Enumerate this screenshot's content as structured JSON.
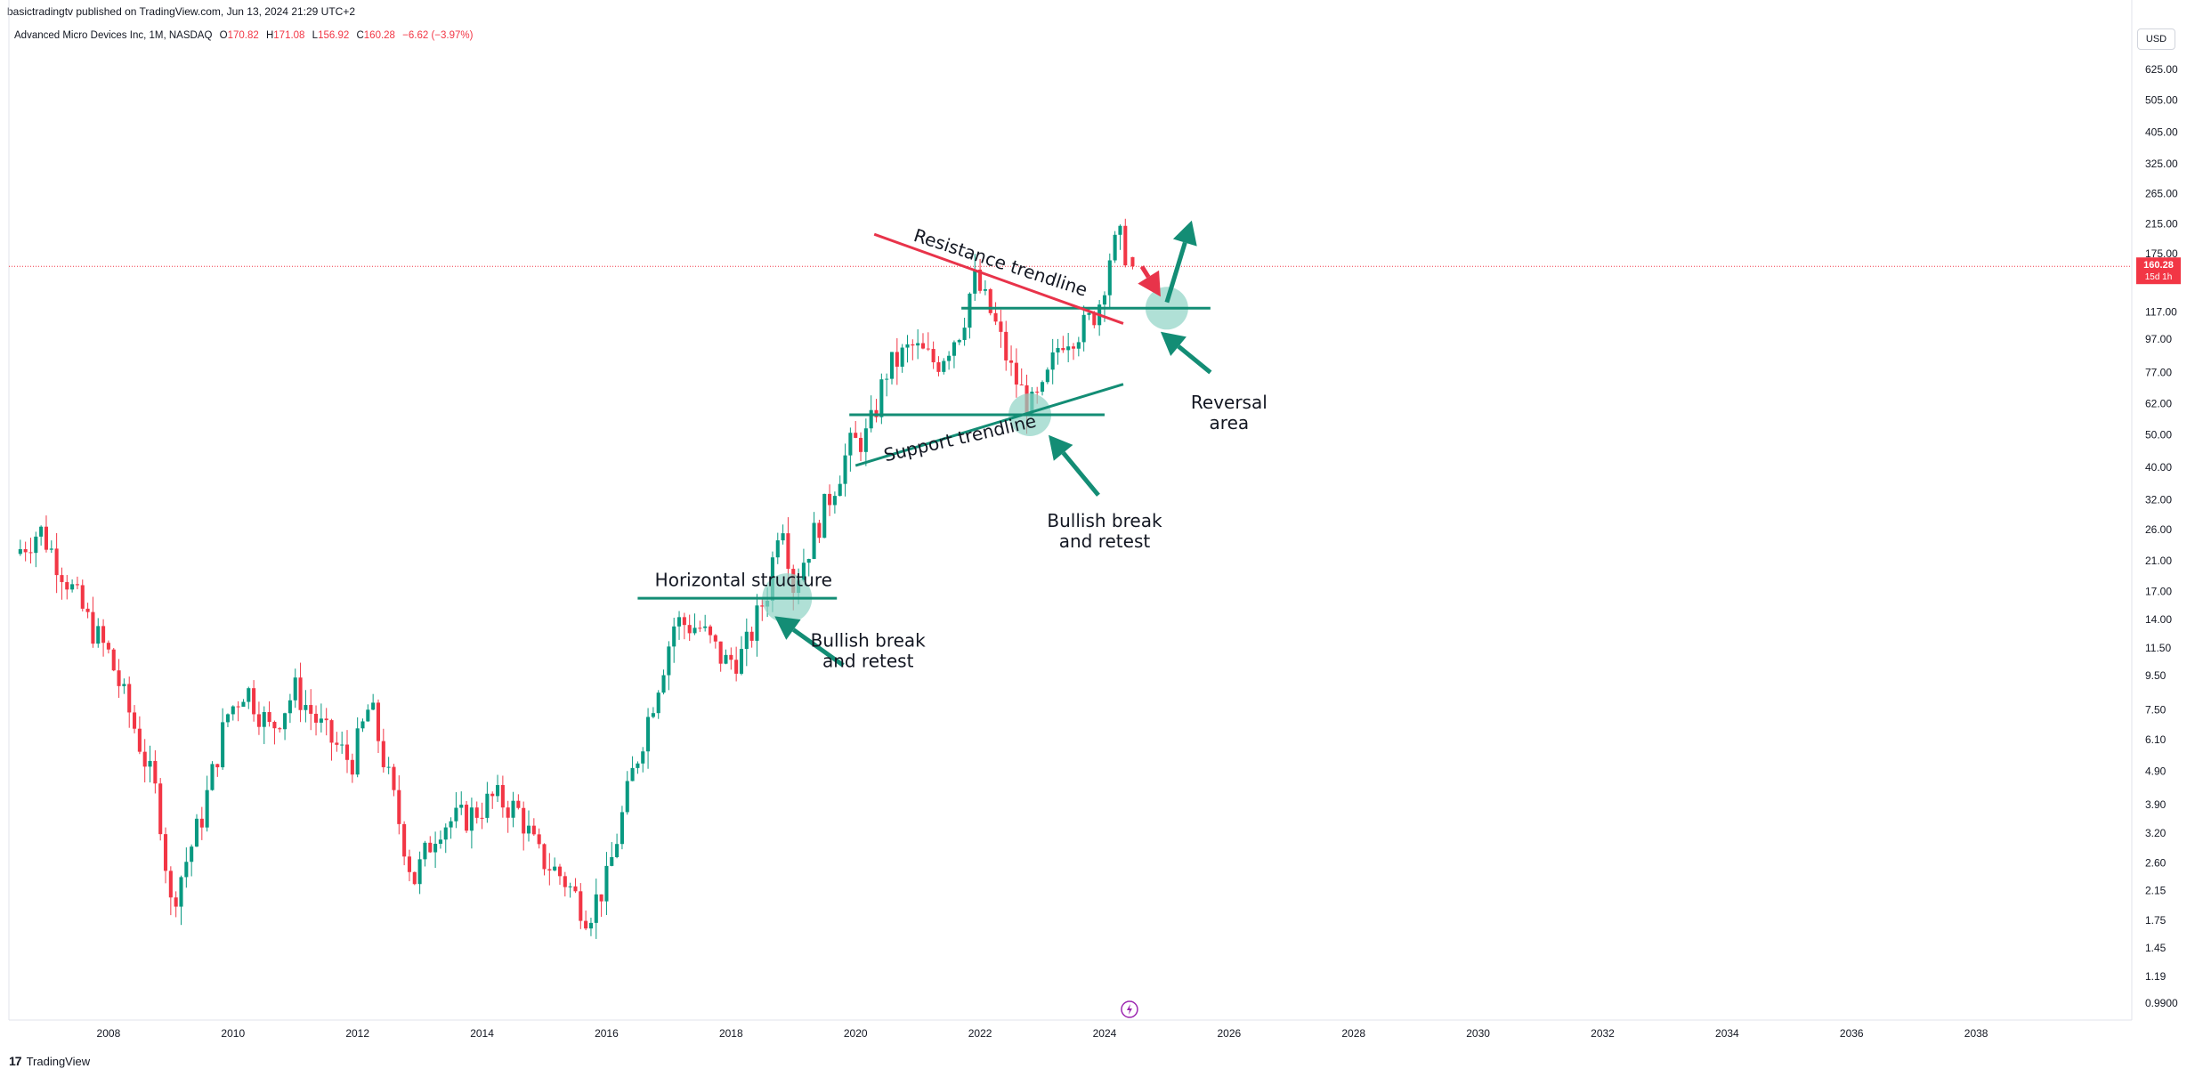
{
  "header": {
    "published_line": "basictradingtv published on TradingView.com, Jun 13, 2024 21:29 UTC+2"
  },
  "legend": {
    "symbol": "Advanced Micro Devices Inc, 1M, NASDAQ",
    "open_key": "O",
    "open": "170.82",
    "high_key": "H",
    "high": "171.08",
    "low_key": "L",
    "low": "156.92",
    "close_key": "C",
    "close": "160.28",
    "change": "−6.62 (−3.97%)"
  },
  "currency_button": "USD",
  "price_tag": {
    "price": "160.28",
    "countdown": "15d 1h"
  },
  "footer": {
    "logo": "17",
    "brand": "TradingView"
  },
  "colors": {
    "up": "#089981",
    "down": "#f23645",
    "drawing_green": "#138d75",
    "drawing_red": "#e8334a",
    "zone": "#8fd3c5"
  },
  "chart_data": {
    "type": "candlestick",
    "instrument": "Advanced Micro Devices Inc",
    "interval": "1M",
    "exchange": "NASDAQ",
    "scale": "log",
    "xlim": [
      2006.4,
      2040.5
    ],
    "ylim": [
      0.88,
      760
    ],
    "x_ticks": [
      "2008",
      "2010",
      "2012",
      "2014",
      "2016",
      "2018",
      "2020",
      "2022",
      "2024",
      "2026",
      "2028",
      "2030",
      "2032",
      "2034",
      "2036",
      "2038"
    ],
    "y_ticks": [
      "625.00",
      "505.00",
      "405.00",
      "325.00",
      "265.00",
      "215.00",
      "175.00",
      "117.00",
      "97.00",
      "77.00",
      "62.00",
      "50.00",
      "40.00",
      "32.00",
      "26.00",
      "21.00",
      "17.00",
      "14.00",
      "11.50",
      "9.50",
      "7.50",
      "6.10",
      "4.90",
      "3.90",
      "3.20",
      "2.60",
      "2.15",
      "1.75",
      "1.45",
      "1.19",
      "0.9900"
    ],
    "ohlc_anchors": [
      [
        2006.5,
        22
      ],
      [
        2006.9,
        26
      ],
      [
        2007.3,
        19
      ],
      [
        2007.7,
        13.5
      ],
      [
        2008.0,
        11
      ],
      [
        2008.4,
        6.8
      ],
      [
        2008.8,
        4.0
      ],
      [
        2009.0,
        1.95
      ],
      [
        2009.5,
        3.6
      ],
      [
        2009.9,
        7.2
      ],
      [
        2010.2,
        8.8
      ],
      [
        2010.6,
        6.5
      ],
      [
        2011.0,
        8.6
      ],
      [
        2011.5,
        6.3
      ],
      [
        2011.9,
        5.2
      ],
      [
        2012.2,
        7.8
      ],
      [
        2012.6,
        3.9
      ],
      [
        2012.9,
        2.3
      ],
      [
        2013.3,
        3.4
      ],
      [
        2013.8,
        3.6
      ],
      [
        2014.2,
        4.1
      ],
      [
        2014.6,
        3.7
      ],
      [
        2014.9,
        2.75
      ],
      [
        2015.3,
        2.35
      ],
      [
        2015.7,
        1.82
      ],
      [
        2016.0,
        2.3
      ],
      [
        2016.4,
        4.7
      ],
      [
        2016.8,
        8.7
      ],
      [
        2017.1,
        13.8
      ],
      [
        2017.5,
        13.2
      ],
      [
        2017.9,
        10.4
      ],
      [
        2018.2,
        11.0
      ],
      [
        2018.6,
        17.5
      ],
      [
        2018.8,
        30.5
      ],
      [
        2019.0,
        17.8
      ],
      [
        2019.5,
        30.0
      ],
      [
        2019.9,
        46
      ],
      [
        2020.2,
        50
      ],
      [
        2020.5,
        78
      ],
      [
        2020.9,
        92
      ],
      [
        2021.3,
        82
      ],
      [
        2021.7,
        106
      ],
      [
        2021.9,
        148
      ],
      [
        2022.2,
        113
      ],
      [
        2022.5,
        78
      ],
      [
        2022.8,
        60
      ],
      [
        2023.0,
        66
      ],
      [
        2023.3,
        98
      ],
      [
        2023.7,
        106
      ],
      [
        2023.9,
        122
      ],
      [
        2024.1,
        178
      ],
      [
        2024.25,
        192
      ],
      [
        2024.4,
        168
      ],
      [
        2024.45,
        160.28
      ]
    ],
    "last": {
      "open": 170.82,
      "high": 171.08,
      "low": 156.92,
      "close": 160.28
    },
    "annotations": [
      {
        "kind": "text",
        "text": "Resistance trendline"
      },
      {
        "kind": "text",
        "text": "Support trendline"
      },
      {
        "kind": "text",
        "text": "Horizontal structure"
      },
      {
        "kind": "text",
        "text": "Bullish break\nand retest"
      },
      {
        "kind": "text",
        "text": "Bullish break\nand retest"
      },
      {
        "kind": "text",
        "text": "Reversal\narea"
      }
    ]
  }
}
